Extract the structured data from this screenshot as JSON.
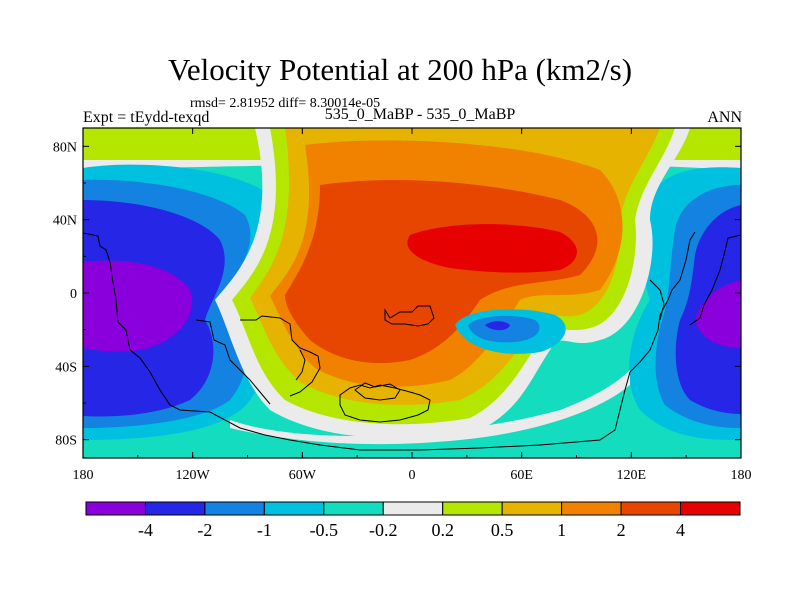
{
  "chart_data": {
    "type": "heatmap",
    "title": "Velocity Potential at 200 hPa (km2/s)",
    "subtitle": "rmsd= 2.81952 diff= 8.30014e-05",
    "left_string": "Expt = tEydd-texqd",
    "center_string": "535_0_MaBP - 535_0_MaBP",
    "right_string": "ANN",
    "x_ticks": [
      "180",
      "120W",
      "60W",
      "0",
      "60E",
      "120E",
      "180"
    ],
    "x_tick_values": [
      -180,
      -120,
      -60,
      0,
      60,
      120,
      180
    ],
    "y_ticks": [
      "80N",
      "40N",
      "0",
      "40S",
      "80S"
    ],
    "y_tick_values": [
      80,
      40,
      0,
      -40,
      -80
    ],
    "xlim": [
      -180,
      180
    ],
    "ylim": [
      -90,
      90
    ],
    "colorbar": {
      "levels": [
        "-4",
        "-2",
        "-1",
        "-0.5",
        "-0.2",
        "0.2",
        "0.5",
        "1",
        "2",
        "4"
      ],
      "colors": [
        "#8a00dc",
        "#2626e6",
        "#1482e0",
        "#00c0e0",
        "#14dcbe",
        "#ebebeb",
        "#b4e600",
        "#e6b400",
        "#f08200",
        "#e64600",
        "#e60000"
      ]
    },
    "field_description": "Large positive region (max > 4) centered near 60W-0 tropics and southern midlatitudes; negative regions (min < -4) over the central Pacific near 150W and over the western Pacific near 150E; small negative closed center near 45E 20S."
  }
}
